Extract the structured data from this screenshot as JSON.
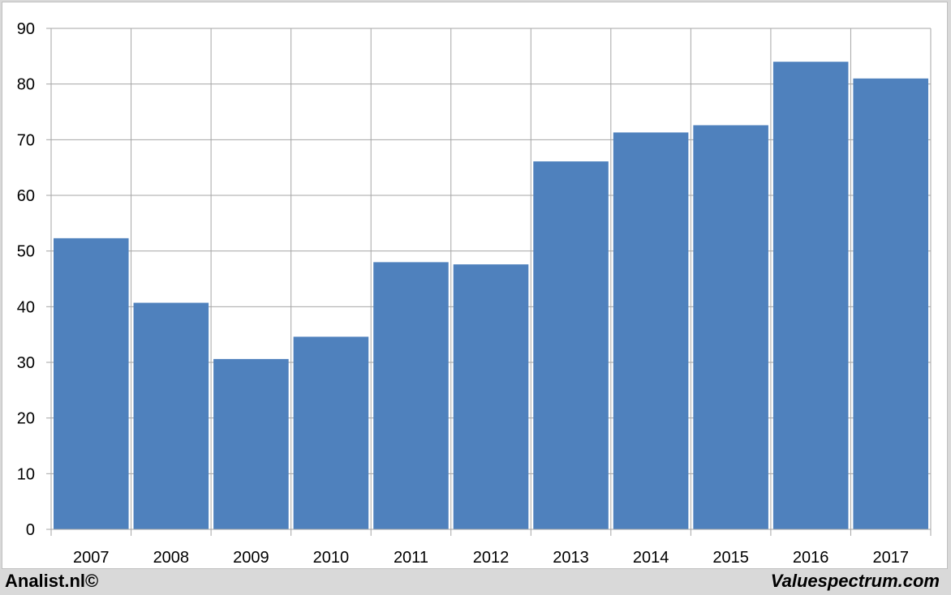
{
  "footer": {
    "left_text": "Analist.nl©",
    "right_text": "Valuespectrum.com"
  },
  "colors": {
    "bar": "#4f81bd",
    "grid": "#a6a6a6",
    "background": "#ffffff",
    "frame": "#d9d9d9"
  },
  "chart_data": {
    "type": "bar",
    "categories": [
      "2007",
      "2008",
      "2009",
      "2010",
      "2011",
      "2012",
      "2013",
      "2014",
      "2015",
      "2016",
      "2017"
    ],
    "values": [
      52.3,
      40.7,
      30.6,
      34.6,
      48.0,
      47.6,
      66.1,
      71.3,
      72.6,
      84.0,
      81.0
    ],
    "yticks": [
      0,
      10,
      20,
      30,
      40,
      50,
      60,
      70,
      80,
      90
    ],
    "ylim": [
      0,
      90
    ],
    "title": "",
    "xlabel": "",
    "ylabel": "",
    "grid": true,
    "legend": "none"
  }
}
